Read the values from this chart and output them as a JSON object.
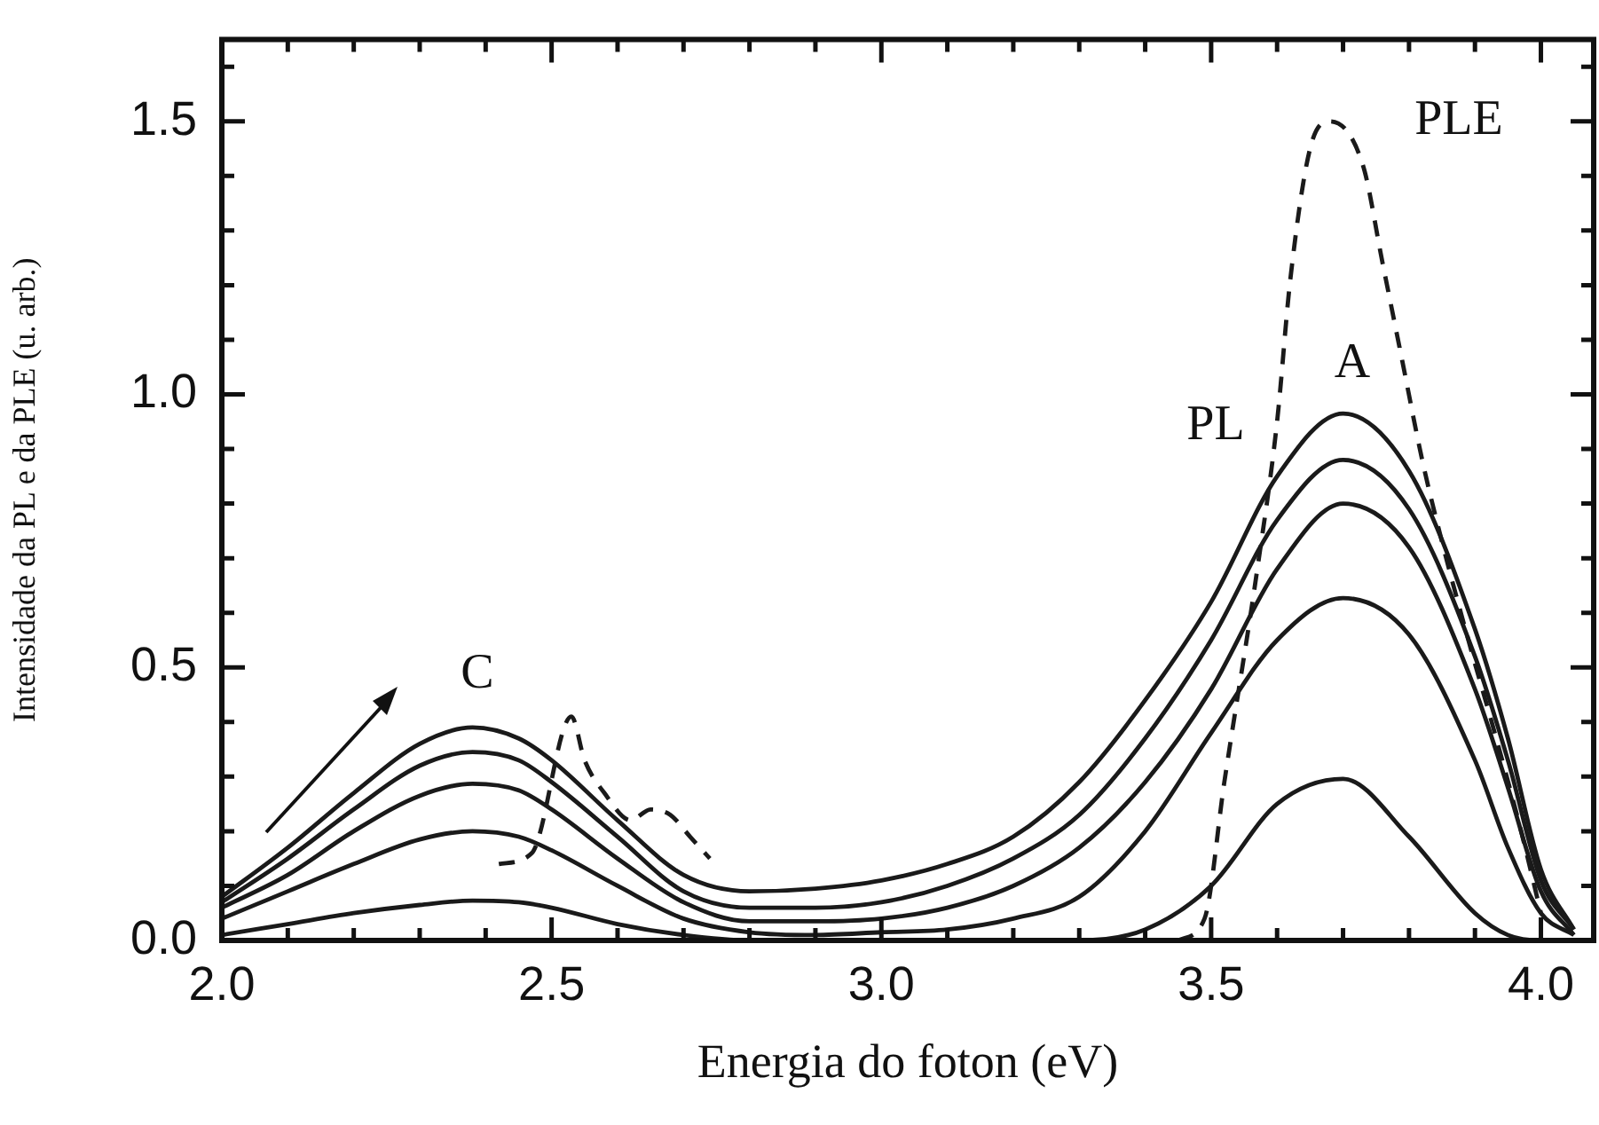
{
  "chart_data": {
    "type": "line",
    "xlabel": "Energia do foton (eV)",
    "ylabel": "Intensidade da PL e da PLE (u. arb.)",
    "xlim": [
      2.0,
      4.08
    ],
    "ylim": [
      0,
      1.65
    ],
    "xticks": [
      {
        "value": 2,
        "label": "2.0"
      },
      {
        "value": 2.1,
        "label": null
      },
      {
        "value": 2.2,
        "label": null
      },
      {
        "value": 2.3,
        "label": null
      },
      {
        "value": 2.4,
        "label": null
      },
      {
        "value": 2.5,
        "label": "2.5"
      },
      {
        "value": 2.6,
        "label": null
      },
      {
        "value": 2.7,
        "label": null
      },
      {
        "value": 2.8,
        "label": null
      },
      {
        "value": 2.9,
        "label": null
      },
      {
        "value": 3,
        "label": "3.0"
      },
      {
        "value": 3.1,
        "label": null
      },
      {
        "value": 3.2,
        "label": null
      },
      {
        "value": 3.3,
        "label": null
      },
      {
        "value": 3.4,
        "label": null
      },
      {
        "value": 3.5,
        "label": "3.5"
      },
      {
        "value": 3.6,
        "label": null
      },
      {
        "value": 3.7,
        "label": null
      },
      {
        "value": 3.8,
        "label": null
      },
      {
        "value": 3.9,
        "label": null
      },
      {
        "value": 4,
        "label": "4.0"
      }
    ],
    "yticks": [
      {
        "value": 0,
        "label": "0.0"
      },
      {
        "value": 0.1,
        "label": null
      },
      {
        "value": 0.2,
        "label": null
      },
      {
        "value": 0.3,
        "label": null
      },
      {
        "value": 0.4,
        "label": null
      },
      {
        "value": 0.5,
        "label": "0.5"
      },
      {
        "value": 0.6,
        "label": null
      },
      {
        "value": 0.7,
        "label": null
      },
      {
        "value": 0.8,
        "label": null
      },
      {
        "value": 0.9,
        "label": null
      },
      {
        "value": 1,
        "label": "1.0"
      },
      {
        "value": 1.1,
        "label": null
      },
      {
        "value": 1.2,
        "label": null
      },
      {
        "value": 1.3,
        "label": null
      },
      {
        "value": 1.4,
        "label": null
      },
      {
        "value": 1.5,
        "label": "1.5"
      },
      {
        "value": 1.6,
        "label": null
      }
    ],
    "marker": "none",
    "x": [
      2.0,
      2.1,
      2.2,
      2.3,
      2.38,
      2.45,
      2.5,
      2.6,
      2.7,
      2.8,
      2.9,
      3.0,
      3.1,
      3.2,
      3.3,
      3.4,
      3.5,
      3.6,
      3.7,
      3.8,
      3.9,
      3.95,
      4.0,
      4.05
    ],
    "series": [
      {
        "color": "#1a1a1a",
        "line_style": "solid",
        "values": [
          0.08,
          0.17,
          0.27,
          0.36,
          0.39,
          0.37,
          0.33,
          0.22,
          0.12,
          0.09,
          0.095,
          0.11,
          0.14,
          0.19,
          0.29,
          0.44,
          0.62,
          0.85,
          0.965,
          0.86,
          0.57,
          0.37,
          0.13,
          0.02
        ]
      },
      {
        "color": "#1a1a1a",
        "line_style": "solid",
        "values": [
          0.07,
          0.15,
          0.24,
          0.32,
          0.345,
          0.33,
          0.29,
          0.19,
          0.09,
          0.06,
          0.06,
          0.07,
          0.1,
          0.15,
          0.23,
          0.37,
          0.55,
          0.77,
          0.88,
          0.79,
          0.52,
          0.33,
          0.11,
          0.02
        ]
      },
      {
        "color": "#1a1a1a",
        "line_style": "solid",
        "values": [
          0.06,
          0.12,
          0.2,
          0.265,
          0.287,
          0.275,
          0.24,
          0.15,
          0.07,
          0.035,
          0.035,
          0.04,
          0.06,
          0.1,
          0.17,
          0.29,
          0.46,
          0.68,
          0.8,
          0.72,
          0.46,
          0.28,
          0.09,
          0.01
        ]
      },
      {
        "color": "#1a1a1a",
        "line_style": "solid",
        "values": [
          0.04,
          0.09,
          0.14,
          0.185,
          0.2,
          0.19,
          0.165,
          0.1,
          0.04,
          0.015,
          0.01,
          0.015,
          0.02,
          0.04,
          0.08,
          0.2,
          0.38,
          0.55,
          0.627,
          0.56,
          0.33,
          0.17,
          0.05,
          0.01
        ]
      },
      {
        "color": "#1a1a1a",
        "line_style": "solid",
        "values": [
          0.01,
          0.03,
          0.05,
          0.065,
          0.073,
          0.07,
          0.06,
          0.03,
          0.01,
          0.0,
          0.0,
          0.0,
          0.0,
          0.0,
          0.0,
          0.02,
          0.1,
          0.25,
          0.296,
          0.19,
          0.05,
          0.01,
          0.0,
          0.0
        ]
      },
      {
        "color": "#1a1a1a",
        "line_style": "dashed",
        "x": [
          2.42,
          2.47,
          2.53,
          2.55,
          2.58,
          2.62,
          2.65,
          2.68,
          2.71,
          2.74,
          3.1,
          3.45,
          3.49,
          3.52,
          3.57,
          3.6,
          3.62,
          3.65,
          3.68,
          3.73,
          3.76,
          3.79,
          3.82,
          3.85,
          3.89,
          3.93,
          3.97,
          4.0
        ],
        "values": [
          0.14,
          0.16,
          0.41,
          0.33,
          0.27,
          0.22,
          0.24,
          0.23,
          0.19,
          0.15,
          null,
          0.0,
          0.04,
          0.29,
          0.68,
          0.95,
          1.21,
          1.45,
          1.5,
          1.42,
          1.24,
          1.06,
          0.88,
          0.73,
          0.55,
          0.38,
          0.2,
          0.05
        ]
      }
    ],
    "annotations": [
      "C",
      "A",
      "PL",
      "PLE"
    ]
  }
}
